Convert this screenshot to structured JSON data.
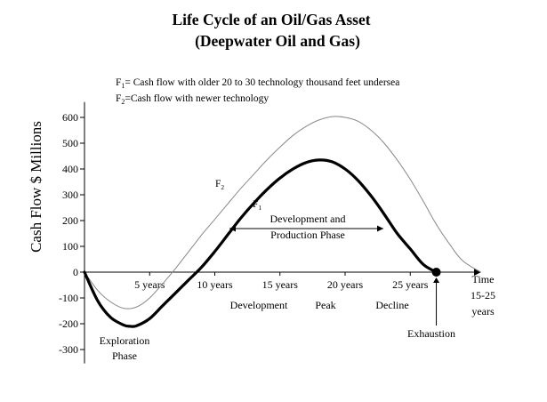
{
  "chart_data": {
    "type": "line",
    "title": "Life Cycle of an Oil/Gas Asset",
    "subtitle": "(Deepwater Oil and Gas)",
    "ylabel": "Cash Flow $ Millions",
    "xlabel": "",
    "xlim": [
      0,
      31
    ],
    "ylim": [
      -340,
      680
    ],
    "y_ticks": [
      600,
      500,
      400,
      300,
      200,
      100,
      0,
      -100,
      -200,
      -300
    ],
    "y_tick_labels": [
      "600",
      "500",
      "400",
      "300",
      "200",
      "100",
      "0",
      "-100",
      "-200",
      "-300"
    ],
    "x_ticks": [
      {
        "x": 5,
        "label": "5 years"
      },
      {
        "x": 10,
        "label": "10 years"
      },
      {
        "x": 15,
        "label": "15 years"
      },
      {
        "x": 20,
        "label": "20 years"
      },
      {
        "x": 25,
        "label": "25 years"
      }
    ],
    "time_label": [
      "Time",
      "15-25",
      "years"
    ],
    "legend": [
      {
        "symbol": "F",
        "sub": "1",
        "text": "= Cash flow with older 20 to 30 technology thousand feet undersea"
      },
      {
        "symbol": "F",
        "sub": "2",
        "text": "=Cash flow with newer technology"
      }
    ],
    "series": [
      {
        "name": "F1",
        "label_symbol": "F",
        "label_sub": "1",
        "color": "#000000",
        "x": [
          0,
          1,
          2,
          3,
          3.5,
          4,
          5,
          6,
          7,
          8,
          9,
          10,
          11,
          12,
          13,
          14,
          15,
          16,
          17,
          18,
          19,
          20,
          21,
          22,
          23,
          24,
          25,
          26,
          27
        ],
        "y": [
          0,
          -110,
          -175,
          -205,
          -210,
          -208,
          -180,
          -130,
          -80,
          -30,
          20,
          80,
          145,
          210,
          268,
          320,
          365,
          400,
          425,
          435,
          428,
          400,
          355,
          295,
          225,
          150,
          90,
          30,
          0
        ]
      },
      {
        "name": "F2",
        "label_symbol": "F",
        "label_sub": "2",
        "color": "#888888",
        "x": [
          0,
          1,
          2,
          3,
          4,
          5,
          6,
          7,
          8,
          9,
          10,
          11,
          12,
          13,
          14,
          15,
          16,
          17,
          18,
          19,
          20,
          21,
          22,
          23,
          24,
          25,
          26,
          27,
          28,
          29,
          30.4
        ],
        "y": [
          0,
          -70,
          -115,
          -140,
          -135,
          -100,
          -45,
          15,
          80,
          145,
          205,
          265,
          325,
          380,
          435,
          485,
          530,
          565,
          590,
          603,
          600,
          585,
          550,
          500,
          435,
          360,
          275,
          185,
          110,
          45,
          0
        ]
      }
    ],
    "annotations": [
      {
        "text": [
          "Exploration",
          "Phase"
        ]
      },
      {
        "text": [
          "Development and",
          "Production Phase"
        ]
      },
      {
        "text": [
          "Development"
        ]
      },
      {
        "text": [
          "Peak"
        ]
      },
      {
        "text": [
          "Decline"
        ]
      },
      {
        "text": [
          "Exhaustion"
        ]
      }
    ],
    "end_marker": {
      "x": 27,
      "y": 0
    }
  }
}
